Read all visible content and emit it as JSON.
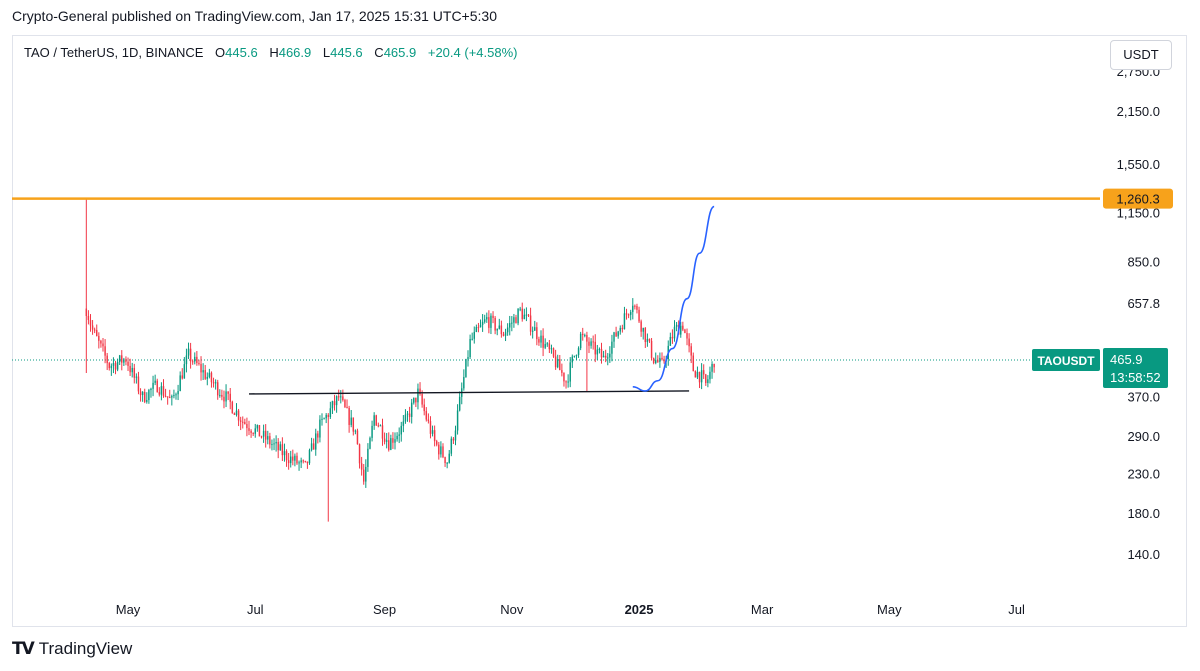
{
  "header": {
    "publisher_line": "Crypto-General published on TradingView.com, Jan 17, 2025 15:31 UTC+5:30"
  },
  "legend": {
    "symbol": "TAO / TetherUS, 1D, BINANCE",
    "open_label": "O",
    "open": "445.6",
    "high_label": "H",
    "high": "466.9",
    "low_label": "L",
    "low": "445.6",
    "close_label": "C",
    "close": "465.9",
    "change": "+20.4 (+4.58%)"
  },
  "unit_button": "USDT",
  "footer": {
    "brand": "TradingView"
  },
  "colors": {
    "up": "#089981",
    "down": "#f23645",
    "resistance": "#f7a21b",
    "support": "#131722",
    "projection": "#2962ff",
    "price_tag": "#089981"
  },
  "chart_data": {
    "type": "candlestick",
    "title": "",
    "y_scale": "log",
    "ylim": [
      120,
      3000
    ],
    "y_ticks": [
      "2,750.0",
      "2,150.0",
      "1,550.0",
      "1,150.0",
      "850.0",
      "657.8",
      "370.0",
      "290.0",
      "230.0",
      "180.0",
      "140.0"
    ],
    "y_tick_values": [
      2750,
      2150,
      1550,
      1150,
      850,
      657.8,
      370,
      290,
      230,
      180,
      140
    ],
    "x_ticks": [
      "May",
      "Jul",
      "Sep",
      "Nov",
      "2025",
      "Mar",
      "May",
      "Jul"
    ],
    "x_tick_dates": [
      "2024-05-01",
      "2024-07-01",
      "2024-09-01",
      "2024-11-01",
      "2025-01-01",
      "2025-03-01",
      "2025-05-01",
      "2025-07-01"
    ],
    "x_range": [
      "2024-03-15",
      "2025-08-10"
    ],
    "grid": false,
    "resistance_line": {
      "label": "1,260.3",
      "value": 1260.3
    },
    "support_line": {
      "start": {
        "date": "2024-06-28",
        "value": 378
      },
      "end": {
        "date": "2025-01-25",
        "value": 385
      }
    },
    "projection_curve": [
      {
        "date": "2024-12-29",
        "value": 395
      },
      {
        "date": "2025-01-04",
        "value": 385
      },
      {
        "date": "2025-01-10",
        "value": 410
      },
      {
        "date": "2025-01-17",
        "value": 500
      },
      {
        "date": "2025-01-24",
        "value": 680
      },
      {
        "date": "2025-01-30",
        "value": 900
      },
      {
        "date": "2025-02-06",
        "value": 1200
      }
    ],
    "current_price": {
      "symbol": "TAOUSDT",
      "price": "465.9",
      "countdown": "13:58:52",
      "value": 465.9
    },
    "last_price_line": true,
    "price_path": [
      {
        "date": "2024-04-11",
        "value": 640
      },
      {
        "date": "2024-04-14",
        "value": 560
      },
      {
        "date": "2024-04-22",
        "value": 450
      },
      {
        "date": "2024-04-30",
        "value": 470
      },
      {
        "date": "2024-05-08",
        "value": 370
      },
      {
        "date": "2024-05-15",
        "value": 400
      },
      {
        "date": "2024-05-22",
        "value": 360
      },
      {
        "date": "2024-05-30",
        "value": 480
      },
      {
        "date": "2024-06-08",
        "value": 420
      },
      {
        "date": "2024-06-17",
        "value": 370
      },
      {
        "date": "2024-06-25",
        "value": 320
      },
      {
        "date": "2024-07-05",
        "value": 290
      },
      {
        "date": "2024-07-15",
        "value": 260
      },
      {
        "date": "2024-07-25",
        "value": 240
      },
      {
        "date": "2024-08-01",
        "value": 310
      },
      {
        "date": "2024-08-10",
        "value": 370
      },
      {
        "date": "2024-08-18",
        "value": 300
      },
      {
        "date": "2024-08-22",
        "value": 220
      },
      {
        "date": "2024-08-27",
        "value": 330
      },
      {
        "date": "2024-09-03",
        "value": 280
      },
      {
        "date": "2024-09-10",
        "value": 310
      },
      {
        "date": "2024-09-17",
        "value": 380
      },
      {
        "date": "2024-09-25",
        "value": 280
      },
      {
        "date": "2024-10-01",
        "value": 250
      },
      {
        "date": "2024-10-05",
        "value": 310
      },
      {
        "date": "2024-10-12",
        "value": 520
      },
      {
        "date": "2024-10-20",
        "value": 600
      },
      {
        "date": "2024-10-28",
        "value": 550
      },
      {
        "date": "2024-11-05",
        "value": 630
      },
      {
        "date": "2024-11-12",
        "value": 560
      },
      {
        "date": "2024-11-20",
        "value": 480
      },
      {
        "date": "2024-11-27",
        "value": 410
      },
      {
        "date": "2024-12-04",
        "value": 540
      },
      {
        "date": "2024-12-10",
        "value": 500
      },
      {
        "date": "2024-12-15",
        "value": 470
      },
      {
        "date": "2024-12-22",
        "value": 560
      },
      {
        "date": "2024-12-29",
        "value": 670
      },
      {
        "date": "2025-01-03",
        "value": 560
      },
      {
        "date": "2025-01-08",
        "value": 470
      },
      {
        "date": "2025-01-12",
        "value": 450
      },
      {
        "date": "2025-01-18",
        "value": 560
      },
      {
        "date": "2025-01-22",
        "value": 580
      },
      {
        "date": "2025-01-27",
        "value": 440
      },
      {
        "date": "2025-01-31",
        "value": 420
      },
      {
        "date": "2025-02-02",
        "value": 400
      },
      {
        "date": "2025-02-05",
        "value": 445.6
      },
      {
        "date": "2025-02-06",
        "value": 465.9
      }
    ]
  }
}
